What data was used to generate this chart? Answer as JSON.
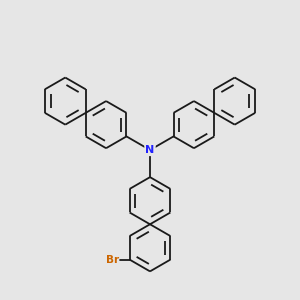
{
  "background_color": "#e6e6e6",
  "bond_color": "#1a1a1a",
  "nitrogen_color": "#2222ff",
  "bromine_color": "#cc6600",
  "bond_width": 1.3,
  "dbo": 0.018,
  "figsize": [
    3.0,
    3.0
  ],
  "dpi": 100,
  "ring_r": 0.072
}
